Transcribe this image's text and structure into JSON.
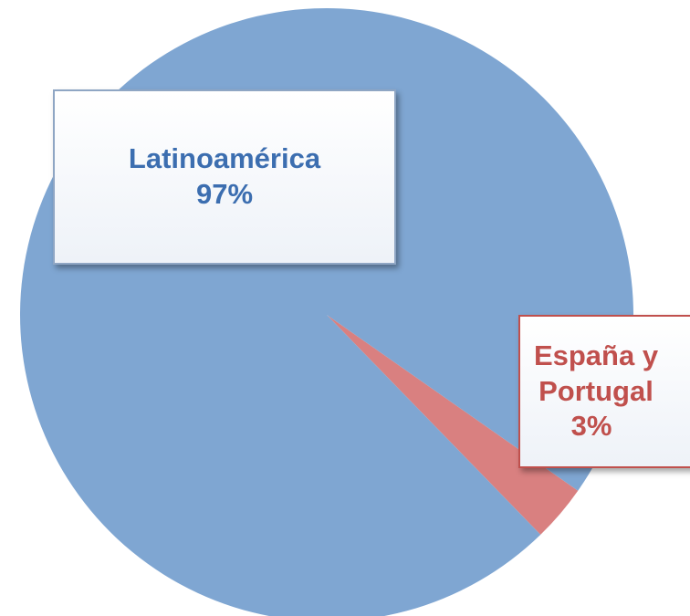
{
  "chart_data": {
    "type": "pie",
    "categories": [
      "Latinoamérica",
      "España y Portugal"
    ],
    "values": [
      97,
      3
    ],
    "value_labels": [
      "97%",
      "3%"
    ],
    "colors": [
      "#7fa6d2",
      "#d98080"
    ],
    "label_colors": [
      "#3c6eb0",
      "#c0504d"
    ]
  }
}
